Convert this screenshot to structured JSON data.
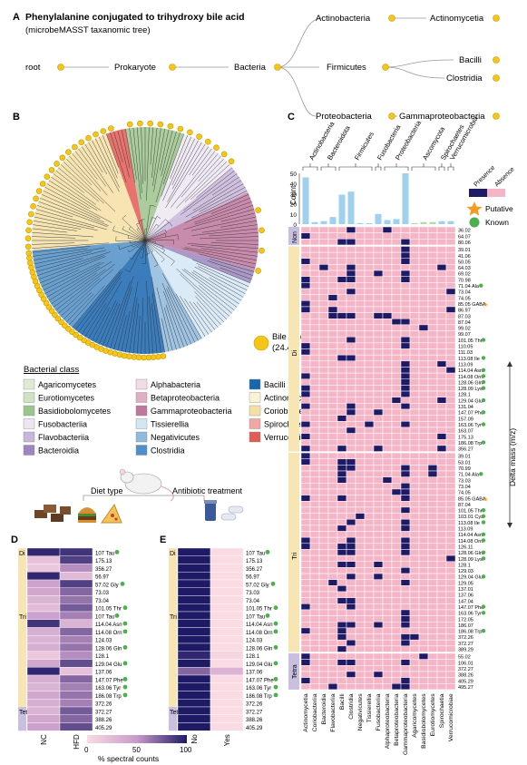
{
  "panel_a": {
    "letter": "A",
    "title": "Phenylalanine conjugated to trihydroxy bile acid",
    "subtitle": "(microbeMASST taxanomic tree)",
    "nodes": [
      "root",
      "Prokaryote",
      "Bacteria",
      "Actinobacteria",
      "Actinomycetia",
      "Firmicutes",
      "Bacilli",
      "Clostridia",
      "Proteobacteria",
      "Gammaproteobacteria"
    ]
  },
  "panel_b": {
    "letter": "B",
    "legend_dot": "Bile acid detected",
    "legend_dot_sub": "(24.4% nodes in the tree)",
    "class_title": "Bacterial class",
    "classes": [
      {
        "name": "Agaricomycetes",
        "color": "#dfe9d6"
      },
      {
        "name": "Eurotiomycetes",
        "color": "#cfe2c4"
      },
      {
        "name": "Basidiobolomycetes",
        "color": "#9cc48d"
      },
      {
        "name": "Fusobacteriia",
        "color": "#ece6f2"
      },
      {
        "name": "Flavobacteriia",
        "color": "#c8b6da"
      },
      {
        "name": "Bacteroidia",
        "color": "#9b86bd"
      },
      {
        "name": "Alphabacteria",
        "color": "#f1dce5"
      },
      {
        "name": "Betaproteobacteria",
        "color": "#dfaec4"
      },
      {
        "name": "Gammaproteobacteria",
        "color": "#c0779d"
      },
      {
        "name": "Tissierellia",
        "color": "#d3e6f4"
      },
      {
        "name": "Negativicutes",
        "color": "#8fb9dd"
      },
      {
        "name": "Clostridia",
        "color": "#4f8fc8"
      },
      {
        "name": "Bacilli",
        "color": "#1865b0"
      },
      {
        "name": "Actinomycetia",
        "color": "#fbf2d3"
      },
      {
        "name": "Coriobacteriia",
        "color": "#f4dfa6"
      },
      {
        "name": "Spirochaetia",
        "color": "#f1a7a3"
      },
      {
        "name": "Verrucomicrobiae",
        "color": "#e45a55"
      }
    ]
  },
  "panel_mid": {
    "diet_label": "Diet type",
    "antibiotic_label": "Antibiotic treatment"
  },
  "panel_c": {
    "letter": "C",
    "count_label": "Count",
    "yticks": [
      "50",
      "40",
      "30",
      "20",
      "10",
      "0"
    ],
    "phyla": [
      "Actinobacteria",
      "Bacteroidota",
      "Firmicutes",
      "Fusobacteria",
      "Proteobacteria",
      "Ascomycota",
      "Spirochaetes",
      "Verrucomicrobia"
    ],
    "columns": [
      "Actinomycetia",
      "Coriobacteriia",
      "Bacteroidia",
      "Flavobacteriia",
      "Bacilli",
      "Clostridia",
      "Negativicutes",
      "Tissierellia",
      "Fusobacteriia",
      "Alphaproteobacteria",
      "Betaproteobacteria",
      "Gammaproteobacteria",
      "Agaricomycetes",
      "Basidiobolomycetes",
      "Eurotiomycetes",
      "Spirochaetia",
      "Verrucomicrobiae"
    ],
    "legend": {
      "presence": "Presence",
      "absence": "Absence",
      "putative": "Putative",
      "known": "Known"
    },
    "delta_label": "Delta mass (m/z)",
    "sections": [
      {
        "name": "Non",
        "rows": [
          "36.02",
          "64.07",
          "80.06"
        ]
      },
      {
        "name": "Di",
        "rows": [
          "39.01",
          "41.06",
          "50.05",
          "64.03",
          "69.02",
          "70.98",
          "71.04 Ala",
          "73.04",
          "74.05",
          "85.05 GABA",
          "86.97",
          "87.03",
          "87.04",
          "99.02",
          "99.07",
          "101.05 Thr",
          "110.05",
          "111.03",
          "113.08 Ile",
          "113.09",
          "114.04 Asn",
          "114.08 Orn",
          "128.06 Gln",
          "128.09 Lys",
          "128.1",
          "129.04 Glu",
          "131.04",
          "147.07 Phe",
          "157.09",
          "163.06 Tyr",
          "163.07",
          "175.13",
          "186.08 Trp",
          "356.27"
        ]
      },
      {
        "name": "Tri",
        "rows": [
          "39.01",
          "53.01",
          "70.99",
          "71.04 Ala",
          "73.03",
          "73.04",
          "74.05",
          "85.05 GABA",
          "87.04",
          "101.05 Thr",
          "103.01 Cys",
          "113.08 Ile",
          "113.09",
          "114.04 Asn",
          "114.08 Orn",
          "126.11",
          "128.06 Gln",
          "128.09 Lys",
          "128.1",
          "129.03",
          "129.04 Glu",
          "129.05",
          "137.01",
          "137.06",
          "147.04",
          "147.07 Phe",
          "163.06 Tyr",
          "172.05",
          "186.07",
          "186.08 Trp",
          "372.26",
          "372.27",
          "389.29"
        ]
      },
      {
        "name": "Tetra",
        "rows": [
          "55.02",
          "106.01",
          "372.27",
          "388.26",
          "405.29",
          "495.27"
        ]
      }
    ],
    "counts": [
      46,
      2,
      3,
      7,
      29,
      32,
      1,
      1,
      10,
      4,
      5,
      50,
      1,
      2,
      2,
      3,
      3
    ]
  },
  "panel_d": {
    "letter": "D",
    "xlabels": [
      "NC",
      "HFD"
    ],
    "sections": [
      {
        "name": "Di",
        "rows": [
          "107 Tau",
          "175.13",
          "356.27",
          "56.97",
          "57.02 Gly",
          "73.03",
          "73.04",
          "101.05 Thr"
        ]
      },
      {
        "name": "Tri",
        "rows": [
          "107 Tau",
          "114.04 Asn",
          "114.08 Orn",
          "124.03",
          "128.06 Gln",
          "128.1",
          "129.04 Glu",
          "137.06",
          "147.07 Phe",
          "163.06 Tyr",
          "186.08 Trp",
          "372.26"
        ]
      },
      {
        "name": "Tetra",
        "rows": [
          "372.27",
          "388.26",
          "405.29"
        ]
      }
    ],
    "values": [
      [
        95,
        90
      ],
      [
        20,
        85
      ],
      [
        15,
        55
      ],
      [
        95,
        25
      ],
      [
        45,
        85
      ],
      [
        40,
        70
      ],
      [
        30,
        65
      ],
      [
        25,
        75
      ],
      [
        45,
        60
      ],
      [
        90,
        30
      ],
      [
        35,
        70
      ],
      [
        30,
        60
      ],
      [
        35,
        65
      ],
      [
        15,
        55
      ],
      [
        40,
        80
      ],
      [
        95,
        20
      ],
      [
        35,
        70
      ],
      [
        30,
        60
      ],
      [
        40,
        65
      ],
      [
        35,
        60
      ],
      [
        30,
        75
      ],
      [
        40,
        70
      ],
      [
        45,
        80
      ]
    ],
    "colorbar_ticks": [
      "0",
      "50",
      "100"
    ],
    "colorbar_label": "% spectral counts"
  },
  "panel_e": {
    "letter": "E",
    "xlabels": [
      "No",
      "Yes"
    ],
    "sections": [
      {
        "name": "Di",
        "rows": [
          "107 Tau",
          "175.13",
          "356.27",
          "56.97",
          "57.02 Gly",
          "73.03",
          "73.04",
          "101.05 Thr"
        ]
      },
      {
        "name": "Tri",
        "rows": [
          "107 Tau",
          "114.04 Asn",
          "114.08 Orn",
          "124.03",
          "128.06 Gln",
          "128.1",
          "129.04 Glu",
          "137.06",
          "147.07 Phe",
          "163.06 Tyr",
          "186.08 Trp",
          "372.26"
        ]
      },
      {
        "name": "Tetra",
        "rows": [
          "372.27",
          "388.26",
          "405.29"
        ]
      }
    ],
    "values": [
      [
        100,
        0
      ],
      [
        100,
        0
      ],
      [
        100,
        0
      ],
      [
        100,
        0
      ],
      [
        100,
        0
      ],
      [
        100,
        0
      ],
      [
        100,
        0
      ],
      [
        100,
        0
      ],
      [
        100,
        0
      ],
      [
        100,
        0
      ],
      [
        100,
        0
      ],
      [
        100,
        0
      ],
      [
        100,
        0
      ],
      [
        95,
        5
      ],
      [
        100,
        0
      ],
      [
        70,
        30
      ],
      [
        100,
        0
      ],
      [
        100,
        0
      ],
      [
        100,
        0
      ],
      [
        100,
        0
      ],
      [
        100,
        0
      ],
      [
        100,
        0
      ],
      [
        100,
        0
      ]
    ]
  }
}
